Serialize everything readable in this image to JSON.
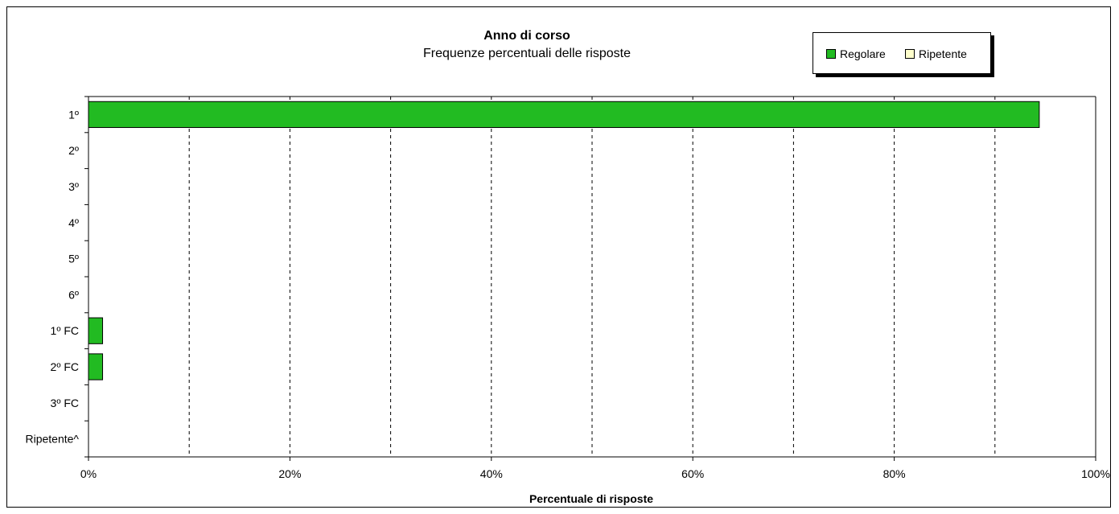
{
  "chart_data": {
    "type": "bar",
    "orientation": "horizontal",
    "title": "Anno di corso",
    "subtitle": "Frequenze percentuali delle risposte",
    "xlabel": "Percentuale di risposte",
    "ylabel": "",
    "categories": [
      "1º",
      "2º",
      "3º",
      "4º",
      "5º",
      "6º",
      "1º FC",
      "2º FC",
      "3º FC",
      "Ripetente^"
    ],
    "series": [
      {
        "name": "Regolare",
        "color": "#22bb22",
        "values": [
          94.4,
          0,
          0,
          0,
          0,
          0,
          1.4,
          1.4,
          0,
          0
        ]
      },
      {
        "name": "Ripetente",
        "color": "#ffffcc",
        "values": [
          0,
          0,
          0,
          0,
          0,
          0,
          0,
          0,
          0,
          0
        ]
      }
    ],
    "xlim": [
      0,
      100
    ],
    "xticks": [
      "0%",
      "20%",
      "40%",
      "60%",
      "80%",
      "100%"
    ],
    "grid": "vertical dashed",
    "legend_position": "top-right"
  }
}
